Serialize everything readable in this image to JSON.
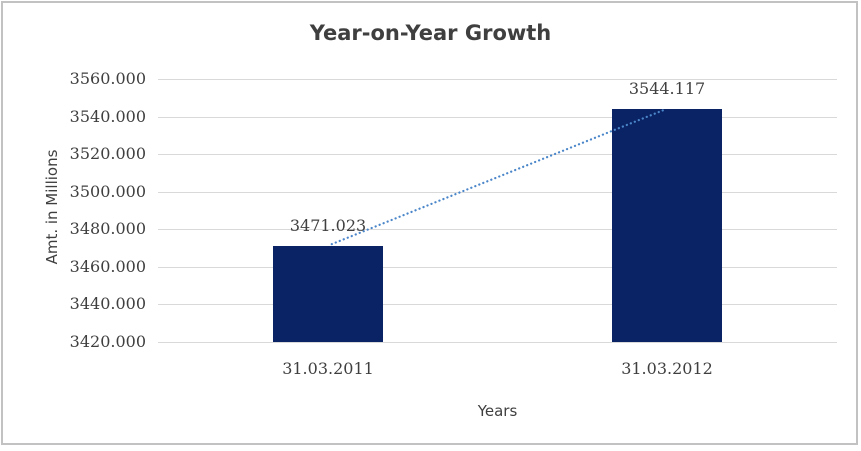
{
  "window": {
    "background": "#ffffff",
    "frame_border_color": "#c2c2c2"
  },
  "chart_data": {
    "type": "bar",
    "title": "Year-on-Year Growth",
    "xlabel": "Years",
    "ylabel": "Amt. in Millions",
    "categories": [
      "31.03.2011",
      "31.03.2012"
    ],
    "values": [
      3471.023,
      3544.117
    ],
    "data_labels": [
      "3471.023",
      "3544.117"
    ],
    "ylim": [
      3420,
      3560
    ],
    "ytick_step": 20,
    "ytick_labels": [
      "3560.000",
      "3540.000",
      "3520.000",
      "3500.000",
      "3480.000",
      "3460.000",
      "3440.000",
      "3420.000"
    ],
    "grid": "horizontal",
    "legend": "none",
    "trendline": {
      "style": "dotted",
      "from_value": 3471.023,
      "to_value": 3544.117
    }
  },
  "colors": {
    "bar": "#0a2365",
    "trendline": "#4a86c9",
    "gridline": "#d9d9d9",
    "title_text": "#3f3f3f",
    "label_text": "#404040"
  }
}
